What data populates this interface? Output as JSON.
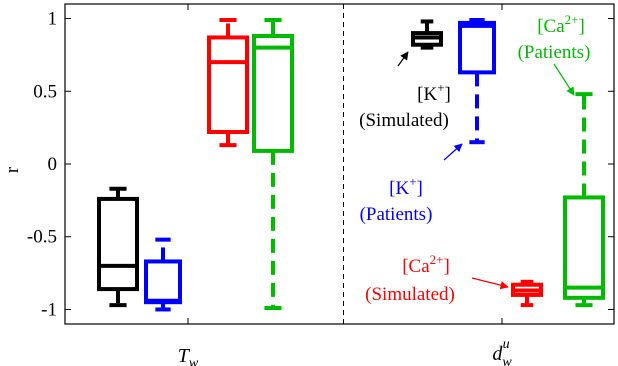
{
  "chart_data": {
    "type": "boxplot",
    "ylabel": "r",
    "ylim": [
      -1.1,
      1.1
    ],
    "yticks": [
      1,
      0.5,
      0,
      -0.5,
      -1
    ],
    "ytick_labels": [
      "1",
      "0.5",
      "0",
      "-0.5",
      "-1"
    ],
    "groups": [
      {
        "name_main": "T",
        "name_sub": "w",
        "name_sup": ""
      },
      {
        "name_main": "d",
        "name_sub": "w",
        "name_sup": "u"
      }
    ],
    "divider": "dashed",
    "colors": {
      "k_sim": "#000000",
      "k_pat": "#0000ff",
      "ca_sim": "#ff0000",
      "ca_pat": "#00bb00"
    },
    "boxes": [
      {
        "group": 0,
        "series": "k_sim",
        "whisker_low": -0.97,
        "q1": -0.86,
        "median": -0.7,
        "q3": -0.24,
        "whisker_high": -0.17
      },
      {
        "group": 0,
        "series": "k_pat",
        "whisker_low": -1.0,
        "q1": -0.95,
        "median": -0.94,
        "q3": -0.67,
        "whisker_high": -0.52
      },
      {
        "group": 0,
        "series": "ca_sim",
        "whisker_low": 0.13,
        "q1": 0.22,
        "median": 0.7,
        "q3": 0.87,
        "whisker_high": 0.99
      },
      {
        "group": 0,
        "series": "ca_pat",
        "whisker_low": -0.99,
        "q1": 0.09,
        "median": 0.8,
        "q3": 0.88,
        "whisker_high": 0.99
      },
      {
        "group": 1,
        "series": "k_sim",
        "whisker_low": 0.8,
        "q1": 0.82,
        "median": 0.87,
        "q3": 0.9,
        "whisker_high": 0.98
      },
      {
        "group": 1,
        "series": "k_pat",
        "whisker_low": 0.15,
        "q1": 0.63,
        "median": 0.95,
        "q3": 0.97,
        "whisker_high": 0.99
      },
      {
        "group": 1,
        "series": "ca_sim",
        "whisker_low": -0.97,
        "q1": -0.9,
        "median": -0.87,
        "q3": -0.83,
        "whisker_high": -0.81
      },
      {
        "group": 1,
        "series": "ca_pat",
        "whisker_low": -0.97,
        "q1": -0.92,
        "median": -0.85,
        "q3": -0.23,
        "whisker_high": 0.48
      }
    ],
    "annotations": [
      {
        "series": "k_sim",
        "ion": "[K",
        "charge": "+",
        "close": "]",
        "source": "(Simulated)"
      },
      {
        "series": "k_pat",
        "ion": "[K",
        "charge": "+",
        "close": "]",
        "source": "(Patients)"
      },
      {
        "series": "ca_sim",
        "ion": "[Ca",
        "charge": "2+",
        "close": "]",
        "source": "(Simulated)"
      },
      {
        "series": "ca_pat",
        "ion": "[Ca",
        "charge": "2+",
        "close": "]",
        "source": "(Patients)"
      }
    ]
  }
}
